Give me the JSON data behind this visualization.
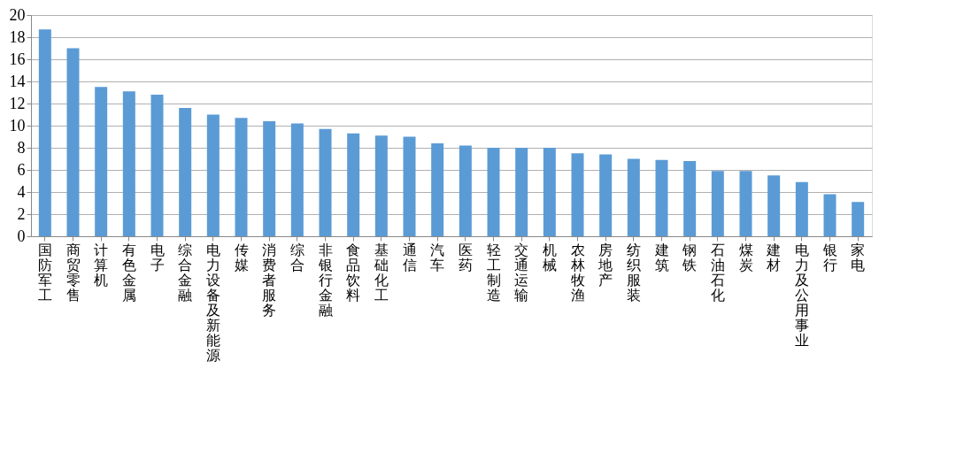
{
  "chart_data": {
    "type": "bar",
    "categories": [
      "国防军工",
      "商贸零售",
      "计算机",
      "有色金属",
      "电子",
      "综合金融",
      "电力设备及新能源",
      "传媒",
      "消费者服务",
      "综合",
      "非银行金融",
      "食品饮料",
      "基础化工",
      "通信",
      "汽车",
      "医药",
      "轻工制造",
      "交通运输",
      "机械",
      "农林牧渔",
      "房地产",
      "纺织服装",
      "建筑",
      "钢铁",
      "石油石化",
      "煤炭",
      "建材",
      "电力及公用事业",
      "银行",
      "家电"
    ],
    "values": [
      18.7,
      17.0,
      13.5,
      13.1,
      12.8,
      11.6,
      11.0,
      10.7,
      10.4,
      10.2,
      9.7,
      9.3,
      9.1,
      9.0,
      8.4,
      8.2,
      8.0,
      8.0,
      8.0,
      7.5,
      7.4,
      7.0,
      6.9,
      6.8,
      5.9,
      5.9,
      5.5,
      4.9,
      3.8,
      3.1
    ],
    "color": "#5b9bd5",
    "ylim": [
      0,
      20
    ],
    "yticks": [
      0,
      2,
      4,
      6,
      8,
      10,
      12,
      14,
      16,
      18,
      20
    ],
    "grid": "y"
  }
}
